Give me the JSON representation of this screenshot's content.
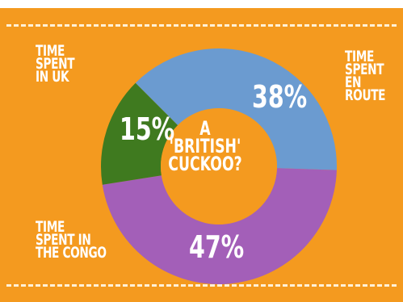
{
  "chart_data": {
    "type": "pie",
    "title": "A 'BRITISH' CUCKOO?",
    "categories": [
      "TIME SPENT EN ROUTE",
      "TIME SPENT IN THE CONGO",
      "TIME SPENT IN UK"
    ],
    "values": [
      38,
      47,
      15
    ],
    "labels": [
      "38%",
      "47%",
      "15%"
    ],
    "colors": [
      "#6b9bd0",
      "#a35fb8",
      "#3f7a1f"
    ],
    "donut": true
  },
  "labels": {
    "uk": "TIME\nSPENT\nIN UK",
    "route": "TIME\nSPENT\nEN\nROUTE",
    "congo": "TIME\nSPENT IN\nTHE CONGO",
    "center": "A\n'BRITISH'\nCUCKOO?"
  },
  "colors": {
    "background": "#f49a1f",
    "hole": "#f49a1f",
    "text": "#ffffff"
  }
}
